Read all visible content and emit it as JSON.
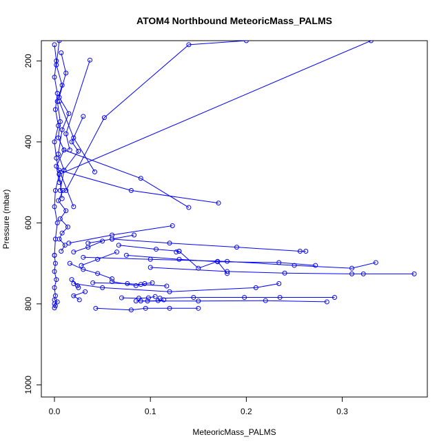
{
  "chart_data": {
    "type": "line",
    "title": "ATOM4 Northbound MeteoricMass_PALMS",
    "xlabel": "MeteoricMass_PALMS",
    "ylabel": "Pressure (mbar)",
    "xlim": [
      0,
      0.375
    ],
    "ylim": [
      1030,
      150
    ],
    "y_reversed": true,
    "grid": false,
    "x_ticks": [
      0.0,
      0.1,
      0.2,
      0.3
    ],
    "x_tick_labels": [
      "0.0",
      "0.1",
      "0.2",
      "0.3"
    ],
    "y_ticks": [
      200,
      400,
      600,
      800,
      1000
    ],
    "y_tick_labels": [
      "200",
      "400",
      "600",
      "800",
      "1000"
    ],
    "series_color": "#0000ff",
    "series": [
      {
        "x": [
          0.0,
          0.002,
          0.0,
          0.003,
          0.001,
          0.004,
          0.0,
          0.002,
          0.005,
          0.001,
          0.0,
          0.003,
          0.001,
          0.0
        ],
        "y": [
          160,
          200,
          240,
          280,
          320,
          360,
          400,
          440,
          480,
          520,
          560,
          600,
          640,
          680
        ]
      },
      {
        "x": [
          0.0,
          0.001,
          0.0,
          0.002,
          0.0,
          0.001,
          0.0,
          0.003,
          0.0,
          0.001,
          0.0
        ],
        "y": [
          680,
          700,
          720,
          740,
          760,
          780,
          790,
          795,
          800,
          805,
          810
        ]
      },
      {
        "x": [
          0.005,
          0.002,
          0.008,
          0.003,
          0.006,
          0.004,
          0.01,
          0.002,
          0.005
        ],
        "y": [
          150,
          210,
          260,
          300,
          350,
          390,
          420,
          460,
          500
        ]
      },
      {
        "x": [
          0.007,
          0.012,
          0.005,
          0.015,
          0.008,
          0.004,
          0.01,
          0.006
        ],
        "y": [
          180,
          230,
          290,
          330,
          370,
          430,
          470,
          520
        ]
      },
      {
        "x": [
          0.009,
          0.004,
          0.012,
          0.006,
          0.014,
          0.008,
          0.005,
          0.011,
          0.007
        ],
        "y": [
          520,
          545,
          570,
          590,
          610,
          625,
          640,
          655,
          670
        ]
      },
      {
        "x": [
          0.037,
          0.012,
          0.016
        ],
        "y": [
          198,
          380,
          420
        ]
      },
      {
        "x": [
          0.03,
          0.018,
          0.025,
          0.01
        ],
        "y": [
          337,
          400,
          423,
          470
        ]
      },
      {
        "x": [
          0.2,
          0.14,
          0.052,
          0.012
        ],
        "y": [
          150,
          160,
          340,
          520
        ]
      },
      {
        "x": [
          0.33,
          0.005,
          0.008
        ],
        "y": [
          150,
          480,
          540
        ]
      },
      {
        "x": [
          0.042,
          0.02,
          0.005
        ],
        "y": [
          474,
          390,
          300
        ]
      },
      {
        "x": [
          0.14,
          0.09,
          0.01
        ],
        "y": [
          562,
          490,
          420
        ]
      },
      {
        "x": [
          0.171,
          0.08,
          0.005,
          0.02
        ],
        "y": [
          551,
          520,
          470,
          560
        ]
      },
      {
        "x": [
          0.123,
          0.06,
          0.015
        ],
        "y": [
          607,
          630,
          650
        ]
      },
      {
        "x": [
          0.262,
          0.256,
          0.19,
          0.12,
          0.06
        ],
        "y": [
          670,
          670,
          660,
          650,
          640
        ]
      },
      {
        "x": [
          0.335,
          0.31,
          0.25,
          0.18,
          0.1,
          0.03
        ],
        "y": [
          698,
          712,
          705,
          695,
          690,
          685
        ]
      },
      {
        "x": [
          0.375,
          0.322,
          0.31,
          0.24,
          0.18,
          0.1
        ],
        "y": [
          726,
          726,
          726,
          724,
          720,
          710
        ]
      },
      {
        "x": [
          0.272,
          0.234,
          0.17,
          0.13,
          0.075
        ],
        "y": [
          705,
          698,
          696,
          690,
          680
        ]
      },
      {
        "x": [
          0.234,
          0.21,
          0.12,
          0.05,
          0.02
        ],
        "y": [
          750,
          760,
          770,
          760,
          750
        ]
      },
      {
        "x": [
          0.292,
          0.235,
          0.198,
          0.145,
          0.11
        ],
        "y": [
          784,
          784,
          784,
          784,
          786
        ]
      },
      {
        "x": [
          0.284,
          0.22,
          0.15,
          0.09
        ],
        "y": [
          795,
          792,
          793,
          793
        ]
      },
      {
        "x": [
          0.15,
          0.12,
          0.095,
          0.08,
          0.043
        ],
        "y": [
          811,
          811,
          811,
          815,
          811
        ]
      },
      {
        "x": [
          0.117,
          0.09,
          0.076,
          0.04
        ],
        "y": [
          756,
          752,
          750,
          748
        ]
      },
      {
        "x": [
          0.102,
          0.094,
          0.085,
          0.06
        ],
        "y": [
          748,
          750,
          755,
          745
        ]
      },
      {
        "x": [
          0.105,
          0.098,
          0.088,
          0.07
        ],
        "y": [
          782,
          785,
          786,
          785
        ]
      },
      {
        "x": [
          0.127,
          0.13,
          0.106,
          0.067
        ],
        "y": [
          672,
          670,
          665,
          655
        ]
      },
      {
        "x": [
          0.114,
          0.108,
          0.097,
          0.085
        ],
        "y": [
          790,
          792,
          793,
          793
        ]
      },
      {
        "x": [
          0.026,
          0.02,
          0.032
        ],
        "y": [
          790,
          780,
          770
        ]
      },
      {
        "x": [
          0.083,
          0.06,
          0.035
        ],
        "y": [
          630,
          640,
          650
        ]
      },
      {
        "x": [
          0.05,
          0.035,
          0.02
        ],
        "y": [
          645,
          660,
          672
        ]
      },
      {
        "x": [
          0.065,
          0.045,
          0.028
        ],
        "y": [
          672,
          690,
          705
        ]
      },
      {
        "x": [
          0.016,
          0.03,
          0.045,
          0.06
        ],
        "y": [
          700,
          715,
          725,
          738
        ]
      },
      {
        "x": [
          0.025,
          0.024,
          0.018
        ],
        "y": [
          760,
          755,
          740
        ]
      },
      {
        "x": [
          0.13,
          0.15,
          0.17,
          0.18
        ],
        "y": [
          670,
          712,
          695,
          725
        ]
      }
    ]
  }
}
